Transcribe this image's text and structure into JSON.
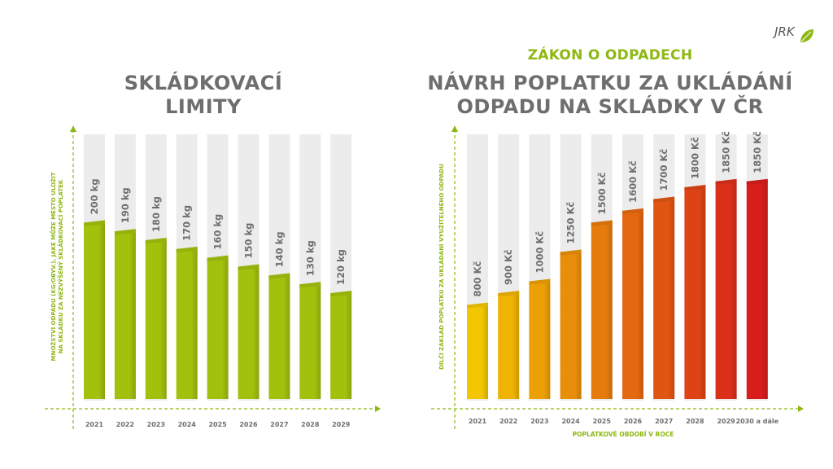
{
  "logo": {
    "text": "JRK",
    "icon": "leaf-icon"
  },
  "colors": {
    "accent": "#8db812",
    "title": "#6e6e6e",
    "track": "#ececec",
    "axis": "#8db812",
    "gradient_start": "#f2c600",
    "gradient_end": "#d81d1d"
  },
  "left": {
    "title_line1": "SKLÁDKOVACÍ",
    "title_line2": "LIMITY"
  },
  "right": {
    "kicker": "ZÁKON O ODPADECH",
    "title_line1": "NÁVRH POPLATKU ZA UKLÁDÁNÍ",
    "title_line2": "ODPADU NA SKLÁDKY V ČR"
  },
  "chart_data": [
    {
      "type": "bar",
      "categories": [
        "2021",
        "2022",
        "2023",
        "2024",
        "2025",
        "2026",
        "2027",
        "2028",
        "2029"
      ],
      "values": [
        200,
        190,
        180,
        170,
        160,
        150,
        140,
        130,
        120
      ],
      "data_labels": [
        "200 kg",
        "190 kg",
        "180 kg",
        "170 kg",
        "160 kg",
        "150 kg",
        "140 kg",
        "130 kg",
        "120 kg"
      ],
      "ylabel_lines": [
        "MNOŽSTVÍ ODPADU (KG/OBYV.), JAKÉ MŮŽE MĚSTO ULOŽIT",
        "NA SKLÁDKU ZA NEZVÝŠENÝ SKLÁDKOVACÍ POPLATEK"
      ],
      "xlabel": "",
      "ylim": [
        0,
        300
      ],
      "bar_color": "#a2c10d",
      "grid": false
    },
    {
      "type": "bar",
      "categories": [
        "2021",
        "2022",
        "2023",
        "2024",
        "2025",
        "2026",
        "2027",
        "2028",
        "2029",
        "2030 a dále"
      ],
      "values": [
        800,
        900,
        1000,
        1250,
        1500,
        1600,
        1700,
        1800,
        1850,
        1850
      ],
      "data_labels": [
        "800 Kč",
        "900 Kč",
        "1000 Kč",
        "1250 Kč",
        "1500 Kč",
        "1600 Kč",
        "1700 Kč",
        "1800 Kč",
        "1850 Kč",
        "1850 Kč"
      ],
      "ylabel_lines": [
        "DÍLČÍ ZÁKLAD POPLATKU ZA UKLÁDÁNÍ VYUŽITELNÉHO ODPADU"
      ],
      "xlabel": "POPLATKOVÉ OBDOBÍ V ROCE",
      "ylim": [
        0,
        2250
      ],
      "grid": false
    }
  ]
}
